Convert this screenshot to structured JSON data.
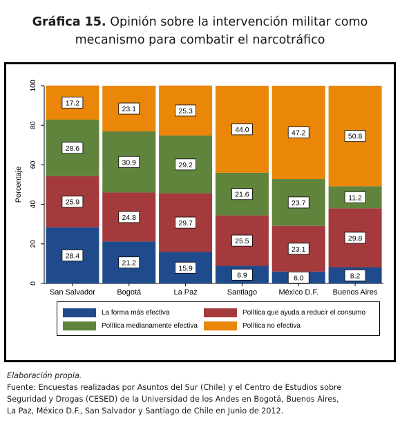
{
  "title": {
    "number": "Gráfica 15.",
    "line1": "Opinión sobre la intervención militar como",
    "line2": "mecanismo para combatir el narcotráfico"
  },
  "colors": {
    "la_forma_mas_efectiva": "#1f4b8c",
    "politica_reduce_consumo": "#a43a3b",
    "politica_medianamente_efectiva": "#61843d",
    "politica_no_efectiva": "#ea8608"
  },
  "chart_data": {
    "type": "bar",
    "stacked": true,
    "ylabel": "Porcentaje",
    "ylim": [
      0,
      100
    ],
    "yticks": [
      0,
      20,
      40,
      60,
      80,
      100
    ],
    "categories": [
      "San Salvador",
      "Bogotá",
      "La Paz",
      "Santiago",
      "México D.F.",
      "Buenos Aires"
    ],
    "series": [
      {
        "name": "La forma más efectiva",
        "color": "#1f4b8c",
        "values": [
          28.4,
          21.2,
          15.9,
          8.9,
          6.0,
          8.2
        ]
      },
      {
        "name": "Política que ayuda a reducir el consumo",
        "color": "#a43a3b",
        "values": [
          25.9,
          24.8,
          29.7,
          25.5,
          23.1,
          29.8
        ]
      },
      {
        "name": "Política medianamente efectiva",
        "color": "#61843d",
        "values": [
          28.6,
          30.9,
          29.2,
          21.6,
          23.7,
          11.2
        ]
      },
      {
        "name": "Política no efectiva",
        "color": "#ea8608",
        "values": [
          17.2,
          23.1,
          25.3,
          44.0,
          47.2,
          50.8
        ]
      }
    ],
    "value_labels": [
      [
        "28.4",
        "21.2",
        "15.9",
        "8.9",
        "6.0",
        "8.2"
      ],
      [
        "25.9",
        "24.8",
        "29.7",
        "25.5",
        "23.1",
        "29.8"
      ],
      [
        "28.6",
        "30.9",
        "29.2",
        "21.6",
        "23.7",
        "11.2"
      ],
      [
        "17.2",
        "23.1",
        "25.3",
        "44.0",
        "47.2",
        "50.8"
      ]
    ],
    "legend": {
      "placement": "bottom",
      "columns": 2,
      "entries": [
        "La forma más efectiva",
        "Política que ayuda a reducir el consumo",
        "Política medianamente efectiva",
        "Política no efectiva"
      ]
    },
    "grid": false
  },
  "notes": {
    "elaboracion": "Elaboración propia.",
    "fuente_1": "Fuente: Encuestas realizadas por Asuntos del Sur (Chile) y el Centro de Estudios sobre",
    "fuente_2": "Seguridad y Drogas (CESED) de la Universidad de los Andes en Bogotá, Buenos Aires,",
    "fuente_3": "La Paz, México D.F., San Salvador y Santiago de Chile en Junio de 2012."
  }
}
